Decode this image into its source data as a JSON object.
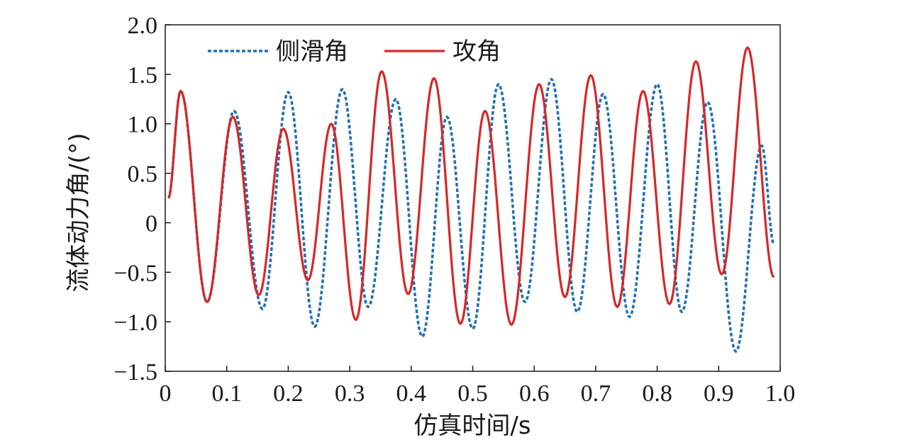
{
  "chart_data": {
    "type": "line",
    "title": "",
    "xlabel": "仿真时间/s",
    "ylabel": "流体动力角/(°)",
    "xlim": [
      0,
      1.0
    ],
    "ylim": [
      -1.5,
      2.0
    ],
    "x_ticks": [
      "0",
      "0.1",
      "0.2",
      "0.3",
      "0.4",
      "0.5",
      "0.6",
      "0.7",
      "0.8",
      "0.9",
      "1.0"
    ],
    "y_ticks": [
      "2.0",
      "1.5",
      "1.0",
      "0.5",
      "0",
      "−0.5",
      "−1.0",
      "−1.5"
    ],
    "grid": false,
    "legend": "top-left",
    "series": [
      {
        "name": "侧滑角",
        "color": "#1f6fb5",
        "dash": "dotted",
        "points": [
          [
            0.005,
            0.25
          ],
          [
            0.025,
            1.33
          ],
          [
            0.068,
            -0.8
          ],
          [
            0.112,
            1.13
          ],
          [
            0.158,
            -0.87
          ],
          [
            0.2,
            1.32
          ],
          [
            0.243,
            -1.05
          ],
          [
            0.288,
            1.35
          ],
          [
            0.33,
            -0.85
          ],
          [
            0.375,
            1.25
          ],
          [
            0.418,
            -1.15
          ],
          [
            0.458,
            1.07
          ],
          [
            0.5,
            -1.07
          ],
          [
            0.542,
            1.4
          ],
          [
            0.585,
            -0.8
          ],
          [
            0.628,
            1.45
          ],
          [
            0.67,
            -0.9
          ],
          [
            0.712,
            1.3
          ],
          [
            0.755,
            -0.95
          ],
          [
            0.8,
            1.4
          ],
          [
            0.84,
            -0.9
          ],
          [
            0.882,
            1.22
          ],
          [
            0.928,
            -1.3
          ],
          [
            0.97,
            0.78
          ],
          [
            0.99,
            -0.22
          ]
        ]
      },
      {
        "name": "攻角",
        "color": "#d62728",
        "dash": "solid",
        "points": [
          [
            0.005,
            0.25
          ],
          [
            0.025,
            1.33
          ],
          [
            0.068,
            -0.8
          ],
          [
            0.11,
            1.07
          ],
          [
            0.152,
            -0.73
          ],
          [
            0.192,
            0.95
          ],
          [
            0.232,
            -0.58
          ],
          [
            0.27,
            1.0
          ],
          [
            0.31,
            -0.98
          ],
          [
            0.352,
            1.53
          ],
          [
            0.395,
            -0.72
          ],
          [
            0.437,
            1.46
          ],
          [
            0.48,
            -1.02
          ],
          [
            0.52,
            1.13
          ],
          [
            0.563,
            -1.03
          ],
          [
            0.608,
            1.4
          ],
          [
            0.65,
            -0.75
          ],
          [
            0.692,
            1.49
          ],
          [
            0.735,
            -0.85
          ],
          [
            0.777,
            1.33
          ],
          [
            0.82,
            -0.82
          ],
          [
            0.863,
            1.63
          ],
          [
            0.905,
            -0.52
          ],
          [
            0.947,
            1.77
          ],
          [
            0.99,
            -0.55
          ]
        ]
      }
    ]
  }
}
